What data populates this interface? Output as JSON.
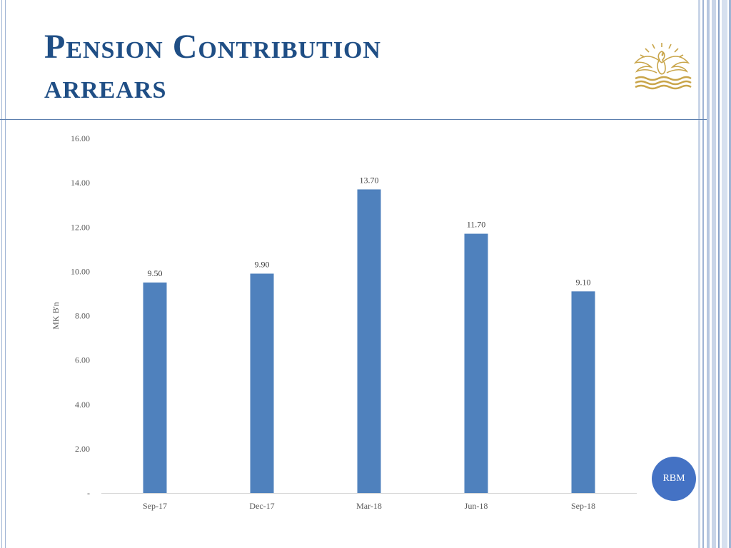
{
  "slide": {
    "title_line1": "Pension Contribution",
    "title_line2": "arrears",
    "badge": "RBM",
    "logo_icon": "bird-emblem-icon"
  },
  "colors": {
    "title": "#1f4e85",
    "bar": "#4f81bd",
    "badge": "#4472c4",
    "rule": "#5c7fae"
  },
  "chart_data": {
    "type": "bar",
    "title": "",
    "xlabel": "",
    "ylabel": "MK B'n",
    "categories": [
      "Sep-17",
      "Dec-17",
      "Mar-18",
      "Jun-18",
      "Sep-18"
    ],
    "values": [
      9.5,
      9.9,
      13.7,
      11.7,
      9.1
    ],
    "value_labels": [
      "9.50",
      "9.90",
      "13.70",
      "11.70",
      "9.10"
    ],
    "ylim": [
      0,
      16
    ],
    "yticks": [
      0,
      2,
      4,
      6,
      8,
      10,
      12,
      14,
      16
    ],
    "ytick_labels": [
      "-",
      "2.00",
      "4.00",
      "6.00",
      "8.00",
      "10.00",
      "12.00",
      "14.00",
      "16.00"
    ],
    "grid": false,
    "legend": "none"
  }
}
